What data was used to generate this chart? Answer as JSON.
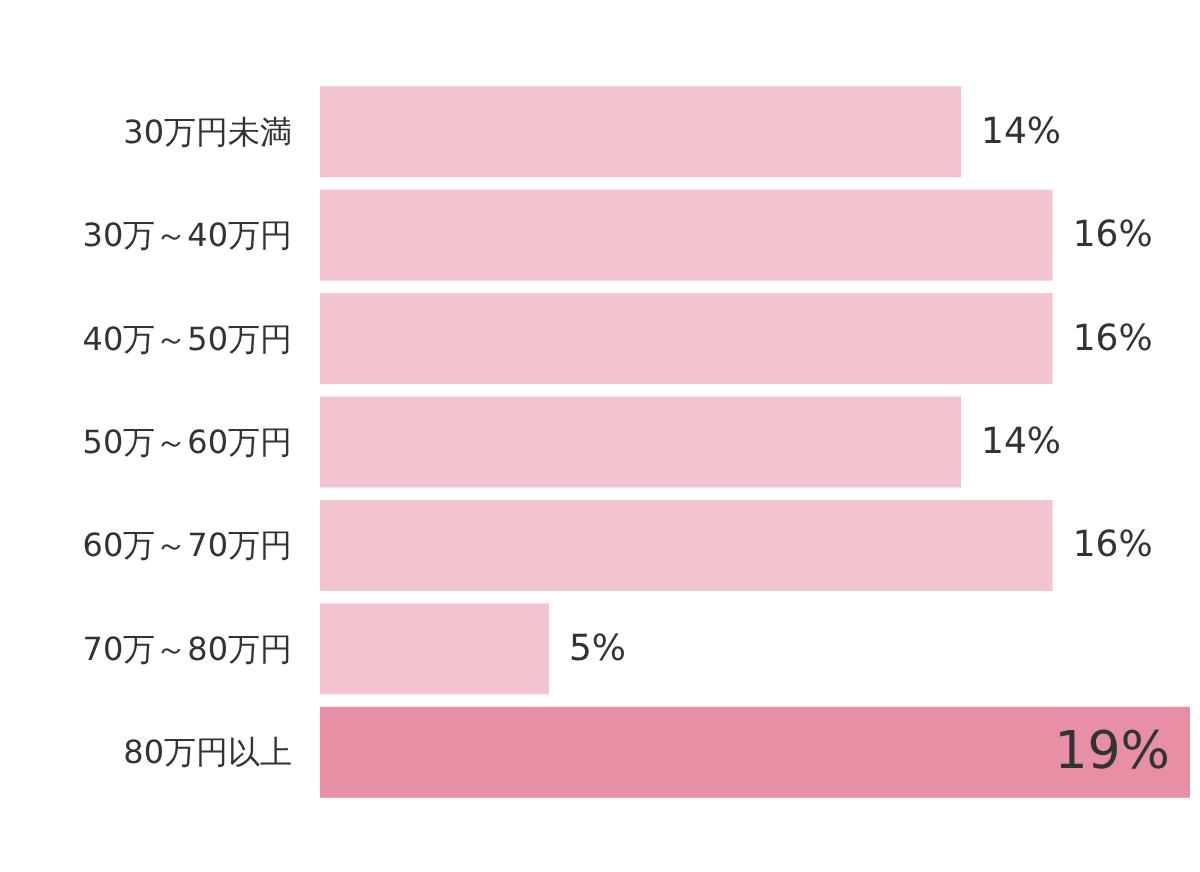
{
  "chart_data": {
    "type": "bar",
    "orientation": "horizontal",
    "categories": [
      "30万円未満",
      "30万～40万円",
      "40万～50万円",
      "50万～60万円",
      "60万～70万円",
      "70万～80万円",
      "80万円以上"
    ],
    "values": [
      14,
      16,
      16,
      14,
      16,
      5,
      19
    ],
    "colors": [
      "#f2c4cf",
      "#f2c4cf",
      "#f2c4cf",
      "#f2c4cf",
      "#f2c4cf",
      "#f2c4cf",
      "#e68fa5"
    ],
    "value_labels": [
      "14%",
      "16%",
      "16%",
      "14%",
      "16%",
      "5%",
      "19%"
    ]
  }
}
